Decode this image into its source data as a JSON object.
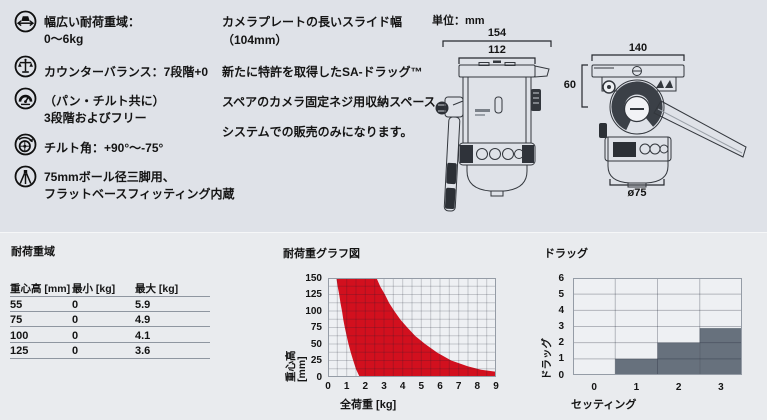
{
  "colors": {
    "bg_top": "#dfe2e8",
    "bg_bottom": "#e9ebee",
    "accent_red": "#d2101e",
    "bar_gray": "#67717d",
    "plot_bg": "#eef0f3",
    "plot_border": "#959ca6",
    "text": "#141414"
  },
  "features": {
    "items": [
      {
        "icon": "payload-icon",
        "lines": [
          "幅広い耐荷重域：",
          "0〜6kg"
        ]
      },
      {
        "icon": "counterbalance-icon",
        "lines": [
          "カウンターバランス：7段階+0"
        ]
      },
      {
        "icon": "drag-icon",
        "lines": [
          "（パン・チルト共に）",
          "3段階およびフリー"
        ]
      },
      {
        "icon": "tilt-icon",
        "lines": [
          "チルト角：+90°〜-75°"
        ]
      },
      {
        "icon": "tripod-icon",
        "lines": [
          "75mmボール径三脚用、",
          "フラットベースフィッティング内蔵"
        ]
      }
    ]
  },
  "description": {
    "lines": [
      "カメラプレートの長いスライド幅",
      "（104mm）",
      "新たに特許を取得したSA-ドラッグ™",
      "スペアのカメラ固定ネジ用収納スペース",
      "システムでの販売のみになります。"
    ]
  },
  "diagrams": {
    "units_label": "単位：mm",
    "front_view": {
      "dim_total_width": "154",
      "dim_plate_width": "112"
    },
    "side_view": {
      "dim_top_width": "140",
      "dim_height": "60",
      "dim_base_diameter": "ø75"
    }
  },
  "load_table": {
    "title": "耐荷重域",
    "columns": [
      "重心高 [mm]",
      "最小 [kg]",
      "最大 [kg]"
    ],
    "rows": [
      [
        "55",
        "0",
        "5.9"
      ],
      [
        "75",
        "0",
        "4.9"
      ],
      [
        "100",
        "0",
        "4.1"
      ],
      [
        "125",
        "0",
        "3.6"
      ]
    ]
  },
  "chart_data": [
    {
      "type": "area",
      "title": "耐荷重グラフ図",
      "xlabel": "全荷重 [kg]",
      "ylabel": "重心高 [mm]",
      "xlim": [
        0,
        9
      ],
      "ylim": [
        0,
        150
      ],
      "xticks": [
        0,
        1,
        2,
        3,
        4,
        5,
        6,
        7,
        8,
        9
      ],
      "yticks": [
        0,
        25,
        50,
        75,
        100,
        125,
        150
      ],
      "x_minor_step": 0.5,
      "y_minor_step": 12.5,
      "grid": true,
      "legend": "none",
      "fill_color": "#d2101e",
      "series": [
        {
          "name": "min-load-boundary",
          "points": [
            [
              0.45,
              150
            ],
            [
              0.52,
              137
            ],
            [
              0.6,
              125
            ],
            [
              0.67,
              112
            ],
            [
              0.75,
              100
            ],
            [
              0.82,
              87
            ],
            [
              0.9,
              75
            ],
            [
              1.0,
              62
            ],
            [
              1.1,
              50
            ],
            [
              1.22,
              37
            ],
            [
              1.35,
              25
            ],
            [
              1.5,
              12
            ],
            [
              1.7,
              0
            ]
          ]
        },
        {
          "name": "max-load-boundary",
          "points": [
            [
              2.6,
              150
            ],
            [
              2.8,
              137
            ],
            [
              3.05,
              125
            ],
            [
              3.28,
              112
            ],
            [
              3.55,
              100
            ],
            [
              3.88,
              87
            ],
            [
              4.25,
              75
            ],
            [
              4.68,
              62
            ],
            [
              5.2,
              50
            ],
            [
              5.85,
              37
            ],
            [
              6.6,
              25
            ],
            [
              7.5,
              16
            ],
            [
              8.2,
              11
            ],
            [
              9.0,
              8
            ]
          ]
        }
      ]
    },
    {
      "type": "step-bar",
      "title": "ドラッグ",
      "xlabel": "セッティング",
      "ylabel": "ドラッグ",
      "categories": [
        "0",
        "1",
        "2",
        "3"
      ],
      "values": [
        0,
        1,
        2,
        2.9
      ],
      "ylim": [
        0,
        6
      ],
      "yticks": [
        0,
        1,
        2,
        3,
        4,
        5,
        6
      ],
      "grid": true,
      "legend": "none",
      "bar_color": "#67717d"
    }
  ]
}
